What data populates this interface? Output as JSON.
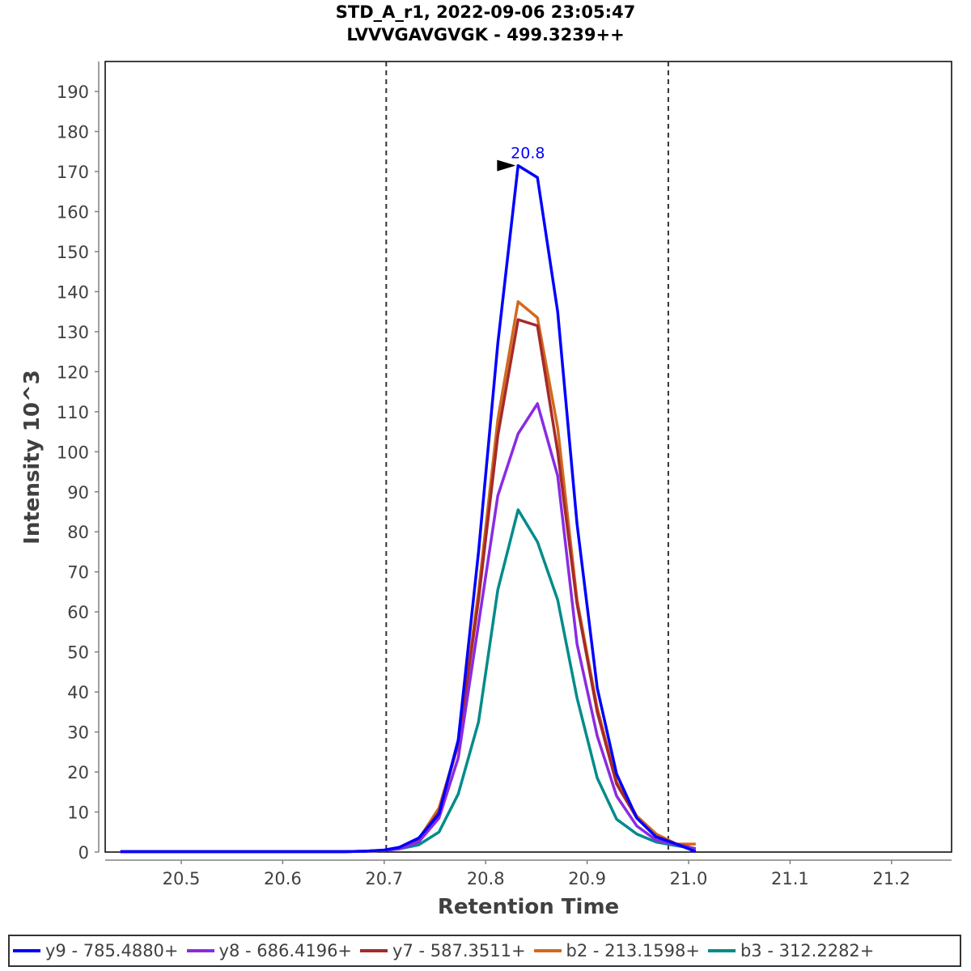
{
  "chart_data": {
    "type": "line",
    "title": "STD_A_r1, 2022-09-06 23:05:47",
    "subtitle": "LVVVGAVGVGK - 499.3239++",
    "xlabel": "Retention Time",
    "ylabel": "Intensity 10^3",
    "xlim": [
      20.42,
      21.26
    ],
    "ylim": [
      0,
      197
    ],
    "x_ticks": [
      "20.5",
      "20.6",
      "20.7",
      "20.8",
      "20.9",
      "21.0",
      "21.1",
      "21.2"
    ],
    "y_ticks": [
      "0",
      "10",
      "20",
      "30",
      "40",
      "50",
      "60",
      "70",
      "80",
      "90",
      "100",
      "110",
      "120",
      "130",
      "140",
      "150",
      "160",
      "170",
      "180",
      "190"
    ],
    "grid": false,
    "legend_position": "bottom",
    "integration_bounds": [
      20.702,
      20.98
    ],
    "peak_annotation": {
      "label": "20.8",
      "x": 20.832,
      "y": 171.5,
      "color": "#0000ff"
    },
    "x": [
      20.44,
      20.46,
      20.48,
      20.5,
      20.52,
      20.54,
      20.56,
      20.58,
      20.6,
      20.62,
      20.64,
      20.66,
      20.68,
      20.7,
      20.715,
      20.734,
      20.754,
      20.773,
      20.793,
      20.812,
      20.832,
      20.851,
      20.871,
      20.89,
      20.91,
      20.929,
      20.949,
      20.968,
      20.988,
      21.007
    ],
    "series": [
      {
        "name": "y9 - 785.4880+",
        "color": "#0000ff",
        "values": [
          0.1,
          0.1,
          0.1,
          0.1,
          0.1,
          0.1,
          0.1,
          0.1,
          0.1,
          0.1,
          0.1,
          0.1,
          0.2,
          0.5,
          1.2,
          3.5,
          9.5,
          28,
          75,
          127,
          171.5,
          168.5,
          135,
          82,
          41,
          19.5,
          8.5,
          3.8,
          2.0,
          0.1
        ]
      },
      {
        "name": "y8 - 686.4196+",
        "color": "#8a2be2",
        "values": [
          0.1,
          0.1,
          0.1,
          0.1,
          0.1,
          0.1,
          0.1,
          0.1,
          0.1,
          0.1,
          0.1,
          0.1,
          0.2,
          0.4,
          0.8,
          2.5,
          8.5,
          23.5,
          57,
          89,
          104.5,
          112,
          94,
          52,
          29,
          14,
          6.5,
          3.0,
          1.8,
          0.8
        ]
      },
      {
        "name": "y7 - 587.3511+",
        "color": "#a52a2a",
        "values": [
          0.1,
          0.1,
          0.1,
          0.1,
          0.1,
          0.1,
          0.1,
          0.1,
          0.1,
          0.1,
          0.1,
          0.1,
          0.2,
          0.4,
          1.0,
          3.0,
          10,
          27,
          63,
          104,
          133,
          131.5,
          100,
          62,
          35,
          17,
          8.5,
          3.8,
          2.0,
          0.8
        ]
      },
      {
        "name": "b2 - 213.1598+",
        "color": "#d2691e",
        "values": [
          0.1,
          0.1,
          0.1,
          0.1,
          0.1,
          0.1,
          0.1,
          0.1,
          0.1,
          0.1,
          0.1,
          0.1,
          0.2,
          0.4,
          1.0,
          3.2,
          11,
          27,
          65,
          108,
          137.5,
          133.5,
          106,
          63,
          36,
          17.5,
          9.0,
          4.5,
          2.0,
          2.0
        ]
      },
      {
        "name": "b3 - 312.2282+",
        "color": "#008b8b",
        "values": [
          0.1,
          0.1,
          0.1,
          0.1,
          0.1,
          0.1,
          0.1,
          0.1,
          0.1,
          0.1,
          0.1,
          0.1,
          0.2,
          0.4,
          0.8,
          1.8,
          5.0,
          14.5,
          32.5,
          65.5,
          85.5,
          77.5,
          63,
          38.5,
          18.5,
          8.2,
          4.5,
          2.5,
          1.6,
          0.8
        ]
      }
    ]
  }
}
